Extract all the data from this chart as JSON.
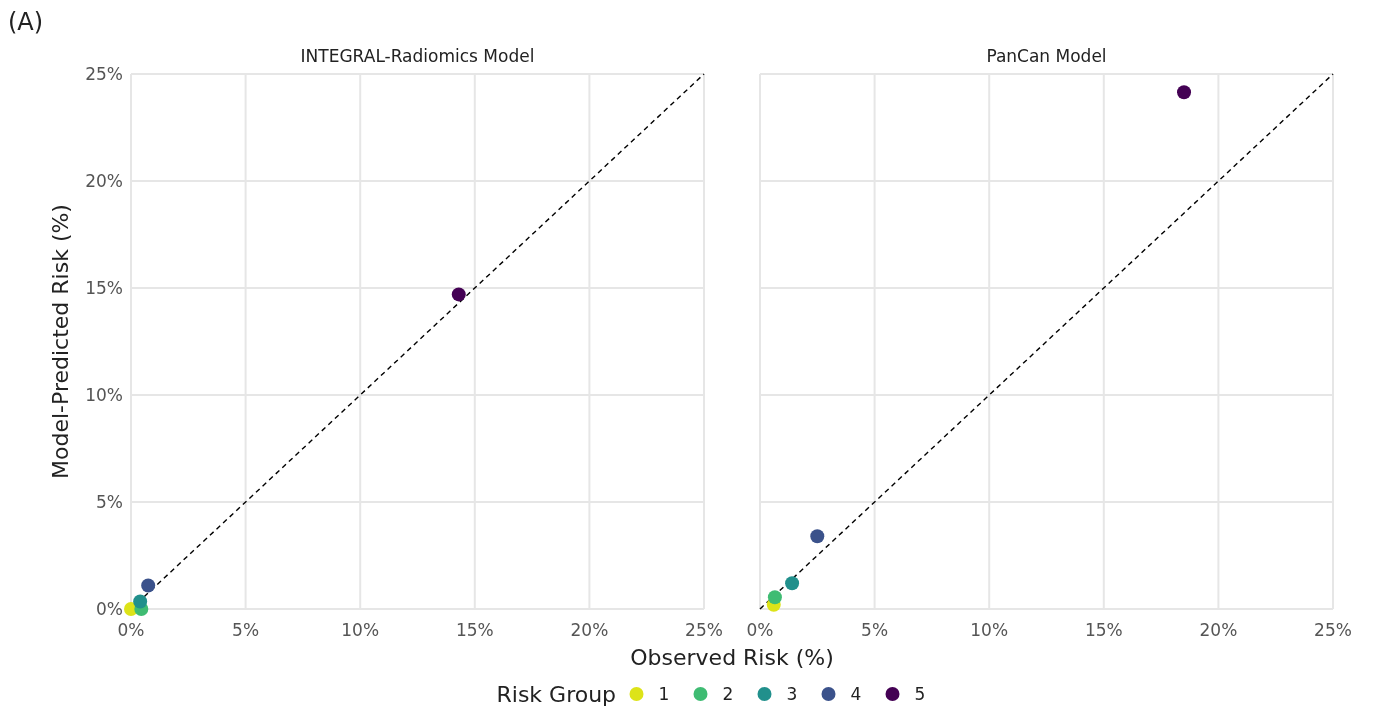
{
  "chart_data": [
    {
      "type": "scatter",
      "title": "INTEGRAL-Radiomics Model",
      "ylabel": "Model-Predicted Risk (%)",
      "xlabel": "Observed Risk (%)",
      "annotations": [
        "(A)"
      ],
      "xlim": [
        0,
        25
      ],
      "ylim": [
        0,
        25
      ],
      "xticks": [
        {
          "value": 0,
          "label": "0%"
        },
        {
          "value": 5,
          "label": "5%"
        },
        {
          "value": 10,
          "label": "10%"
        },
        {
          "value": 15,
          "label": "15%"
        },
        {
          "value": 20,
          "label": "20%"
        },
        {
          "value": 25,
          "label": "25%"
        }
      ],
      "yticks": [
        {
          "value": 0,
          "label": "0%"
        },
        {
          "value": 5,
          "label": "5%"
        },
        {
          "value": 10,
          "label": "10%"
        },
        {
          "value": 15,
          "label": "15%"
        },
        {
          "value": 20,
          "label": "20%"
        },
        {
          "value": 25,
          "label": "25%"
        }
      ],
      "grid": true,
      "marker": "circle",
      "legend": "bottom",
      "legend_title": "Risk Group",
      "series": [
        {
          "type": "line",
          "x": [
            0,
            25
          ],
          "values": [
            0,
            25
          ],
          "color": "#000000",
          "line_style": "dashed",
          "marker": "none"
        },
        {
          "name": "1",
          "color": "#dde318",
          "x": [
            0
          ],
          "values": [
            0
          ]
        },
        {
          "name": "2",
          "color": "#3fbc73",
          "x": [
            0.45
          ],
          "values": [
            0
          ]
        },
        {
          "name": "3",
          "color": "#21908c",
          "x": [
            0.4
          ],
          "values": [
            0.35
          ]
        },
        {
          "name": "4",
          "color": "#3b528b",
          "x": [
            0.75
          ],
          "values": [
            1.1
          ]
        },
        {
          "name": "5",
          "color": "#440154",
          "x": [
            14.3
          ],
          "values": [
            14.7
          ]
        }
      ]
    },
    {
      "type": "scatter",
      "title": "PanCan Model",
      "xlim": [
        0,
        25
      ],
      "ylim": [
        0,
        25
      ],
      "xticks": [
        {
          "value": 0,
          "label": "0%"
        },
        {
          "value": 5,
          "label": "5%"
        },
        {
          "value": 10,
          "label": "10%"
        },
        {
          "value": 15,
          "label": "15%"
        },
        {
          "value": 20,
          "label": "20%"
        },
        {
          "value": 25,
          "label": "25%"
        }
      ],
      "yticks": [
        0,
        5,
        10,
        15,
        20,
        25
      ],
      "tick_labels": "x",
      "grid": true,
      "marker": "circle",
      "series": [
        {
          "type": "line",
          "x": [
            0,
            25
          ],
          "values": [
            0,
            25
          ],
          "color": "#000000",
          "line_style": "dashed",
          "marker": "none"
        },
        {
          "name": "1",
          "color": "#dde318",
          "x": [
            0.6
          ],
          "values": [
            0.2
          ]
        },
        {
          "name": "2",
          "color": "#3fbc73",
          "x": [
            0.65
          ],
          "values": [
            0.55
          ]
        },
        {
          "name": "3",
          "color": "#21908c",
          "x": [
            1.4
          ],
          "values": [
            1.2
          ]
        },
        {
          "name": "4",
          "color": "#3b528b",
          "x": [
            2.5
          ],
          "values": [
            3.4
          ]
        },
        {
          "name": "5",
          "color": "#440154",
          "x": [
            18.5
          ],
          "values": [
            24.15
          ]
        }
      ]
    }
  ]
}
